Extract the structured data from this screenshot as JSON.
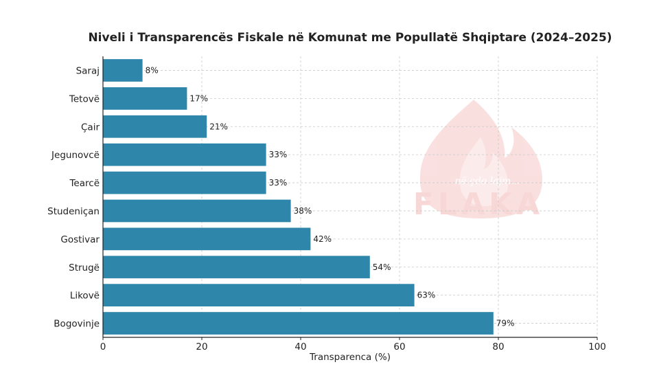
{
  "chart_data": {
    "type": "bar",
    "orientation": "horizontal",
    "title": "Niveli i Transparencës Fiskale në Komunat me Popullatë Shqiptare (2024–2025)",
    "xlabel": "Transparenca (%)",
    "ylabel": "",
    "xlim": [
      0,
      100
    ],
    "xticks": [
      0,
      20,
      40,
      60,
      80,
      100
    ],
    "grid": true,
    "bar_color": "#2e86ab",
    "categories": [
      "Saraj",
      "Tetovë",
      "Çair",
      "Jegunovcë",
      "Tearcë",
      "Studeniçan",
      "Gostivar",
      "Strugë",
      "Likovë",
      "Bogovinje"
    ],
    "values": [
      8,
      17,
      21,
      33,
      33,
      38,
      42,
      54,
      63,
      79
    ],
    "value_suffix": "%"
  },
  "watermark": {
    "brand": "FLAKA",
    "tagline": "në çdo lajm...",
    "color": "#e84c4c"
  }
}
